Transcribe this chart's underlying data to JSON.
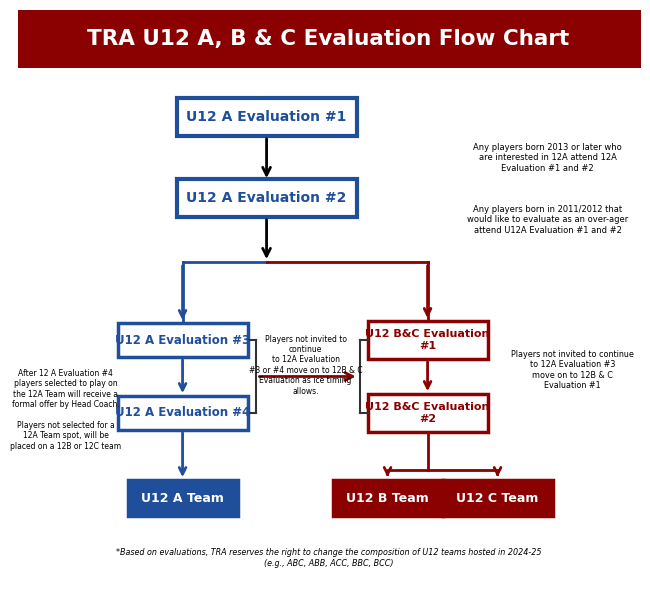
{
  "title": "TRA U12 A, B & C Evaluation Flow Chart",
  "title_bg": "#8B0000",
  "title_fg": "#FFFFFF",
  "bg_color": "#FFFFFF",
  "blue_edge": "#1F4E9B",
  "red_edge": "#8B0000",
  "note_right1": "Any players born 2013 or later who\nare interested in 12A attend 12A\nEvaluation #1 and #2",
  "note_right2": "Any players born in 2011/2012 that\nwould like to evaluate as an over-ager\nattend U12A Evaluation #1 and #2",
  "note_left": "After 12 A Evaluation #4\nplayers selected to play on\nthe 12A Team will receive a\nformal offer by Head Coach.\n\nPlayers not selected for a\n12A Team spot, will be\nplaced on a 12B or 12C team",
  "note_middle": "Players not invited to\ncontinue\nto 12A Evaluation\n#3 or #4 move on to 12B & C\nEvaluation as ice timing\nallows.",
  "note_right3": "Players not invited to continue\nto 12A Evaluation #3\nmove on to 12B & C\nEvaluation #1",
  "footer": "*Based on evaluations, TRA reserves the right to change the composition of U12 teams hosted in 2024-25\n(e.g., ABC, ABB, ACC, BBC, BCC)"
}
